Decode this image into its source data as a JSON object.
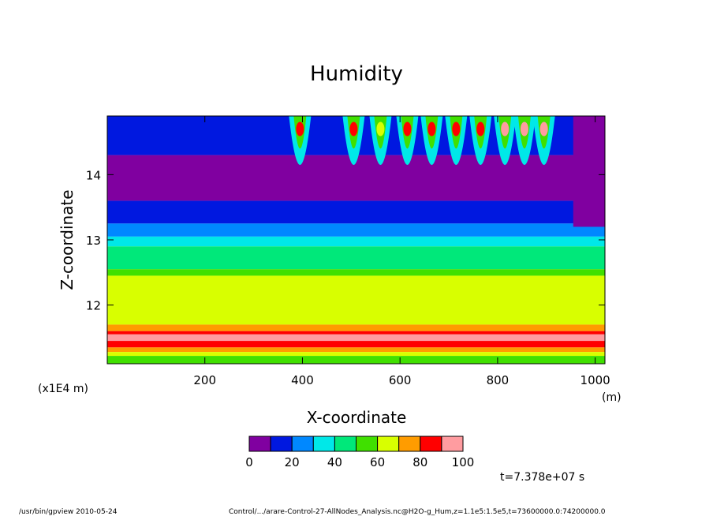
{
  "chart_data": {
    "type": "heatmap",
    "title": "Humidity",
    "xlabel": "X-coordinate",
    "ylabel": "Z-coordinate",
    "x_unit": "(m)",
    "y_unit": "(x1E4 m)",
    "xlim": [
      0,
      1020
    ],
    "ylim": [
      11.1,
      14.9
    ],
    "x_ticks": [
      {
        "value": 200,
        "label": "200"
      },
      {
        "value": 400,
        "label": "400"
      },
      {
        "value": 600,
        "label": "600"
      },
      {
        "value": 800,
        "label": "800"
      },
      {
        "value": 1000,
        "label": "1000"
      }
    ],
    "y_ticks": [
      {
        "value": 12,
        "label": "12"
      },
      {
        "value": 13,
        "label": "13"
      },
      {
        "value": 14,
        "label": "14"
      }
    ],
    "colorbar": {
      "levels": [
        0,
        10,
        20,
        30,
        40,
        50,
        60,
        70,
        80,
        90,
        100
      ],
      "tick_labels": [
        "0",
        "20",
        "40",
        "60",
        "80",
        "100"
      ],
      "colors": [
        "#8000a0",
        "#0018e0",
        "#0088ff",
        "#00e8e8",
        "#00e87a",
        "#40e000",
        "#d8ff00",
        "#ff9c00",
        "#ff0000",
        "#ff9ca0"
      ]
    },
    "bands": [
      {
        "z0": 14.9,
        "z1": 14.3,
        "level": 1
      },
      {
        "z0": 14.3,
        "z1": 13.95,
        "level": 0
      },
      {
        "z0": 13.95,
        "z1": 13.6,
        "level": 0
      },
      {
        "z0": 13.6,
        "z1": 13.25,
        "level": 1
      },
      {
        "z0": 13.25,
        "z1": 13.05,
        "level": 2
      },
      {
        "z0": 13.05,
        "z1": 12.9,
        "level": 3
      },
      {
        "z0": 12.9,
        "z1": 12.55,
        "level": 4
      },
      {
        "z0": 12.55,
        "z1": 12.45,
        "level": 5
      },
      {
        "z0": 12.45,
        "z1": 11.7,
        "level": 6
      },
      {
        "z0": 11.7,
        "z1": 11.6,
        "level": 7
      },
      {
        "z0": 11.6,
        "z1": 11.55,
        "level": 8
      },
      {
        "z0": 11.55,
        "z1": 11.45,
        "level": 9
      },
      {
        "z0": 11.45,
        "z1": 11.35,
        "level": 8
      },
      {
        "z0": 11.35,
        "z1": 11.28,
        "level": 7
      },
      {
        "z0": 11.28,
        "z1": 11.22,
        "level": 6
      },
      {
        "z0": 11.22,
        "z1": 11.1,
        "level": 5
      }
    ],
    "plumes": [
      {
        "x": 395,
        "level": 8
      },
      {
        "x": 505,
        "level": 8
      },
      {
        "x": 560,
        "level": 6
      },
      {
        "x": 615,
        "level": 8
      },
      {
        "x": 665,
        "level": 8
      },
      {
        "x": 715,
        "level": 8
      },
      {
        "x": 765,
        "level": 8
      },
      {
        "x": 815,
        "level": 9
      },
      {
        "x": 855,
        "level": 9
      },
      {
        "x": 895,
        "level": 9
      }
    ],
    "time_label": "t=7.378e+07 s"
  },
  "footer": {
    "left": "/usr/bin/gpview   2010-05-24",
    "right": "Control/.../arare-Control-27-AllNodes_Analysis.nc@H2O-g_Hum,z=1.1e5:1.5e5,t=73600000.0:74200000.0"
  }
}
